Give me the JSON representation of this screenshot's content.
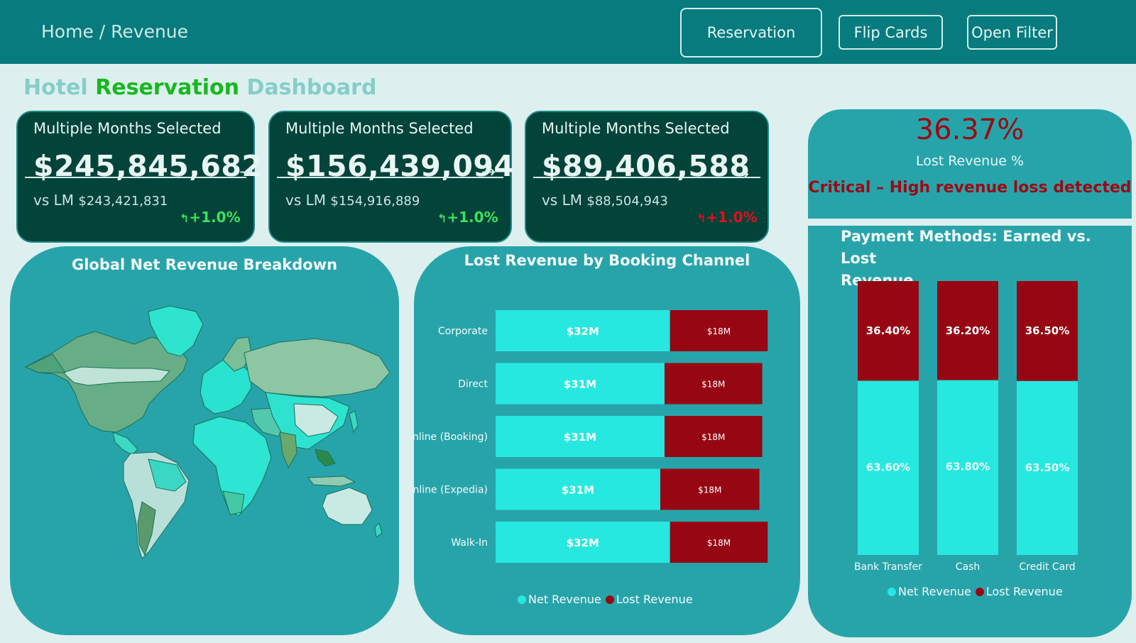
{
  "header": {
    "breadcrumb": "Home / Revenue",
    "buttons": {
      "reservation": "Reservation",
      "flip_cards": "Flip Cards",
      "open_filter": "Open Filter"
    }
  },
  "title": {
    "part1": "Hotel",
    "part2": "Reservation",
    "part3": "Dashboard",
    "colors": {
      "part1": "#86cdc9",
      "part2": "#17b81e",
      "part3": "#86cdc9"
    }
  },
  "kpis": [
    {
      "subtitle": "Multiple Months Selected",
      "value": "$245,845,682",
      "vs_label": "vs LM",
      "vs_value": "$243,421,831",
      "change": "+1.0%",
      "change_color": "#3be35a",
      "arrow_icon": "arrow-right"
    },
    {
      "subtitle": "Multiple Months Selected",
      "value": "$156,439,094",
      "vs_label": "vs LM",
      "vs_value": "$154,916,889",
      "change": "+1.0%",
      "change_color": "#3be35a",
      "arrow_icon": "arrow-right"
    },
    {
      "subtitle": "Multiple Months Selected",
      "value": "$89,406,588",
      "vs_label": "vs LM",
      "vs_value": "$88,504,943",
      "change": "+1.0%",
      "change_color": "#e0101e",
      "arrow_icon": "arrow-right"
    }
  ],
  "lost_revenue": {
    "percent": "36.37%",
    "label": "Lost Revenue %",
    "message": "Critical – High revenue loss detected"
  },
  "map_panel": {
    "title": "Global Net Revenue Breakdown"
  },
  "channel_panel": {
    "title": "Lost Revenue by Booking Channel"
  },
  "payment_panel": {
    "title_line1": "Payment Methods: Earned vs. Lost",
    "title_line2": "Revenue"
  },
  "colors": {
    "net": "#27e8e0",
    "lost": "#970713",
    "panel": "#27a4aa",
    "header": "#077b7e",
    "kpi": "#02433a"
  },
  "chart_data": [
    {
      "type": "bar",
      "orientation": "horizontal",
      "stacked": true,
      "categories": [
        "Corporate",
        "Direct",
        "Online (Booking)",
        "Online (Expedia)",
        "Walk-In"
      ],
      "series": [
        {
          "name": "Net Revenue",
          "values": [
            32,
            31,
            31,
            31,
            32
          ],
          "labels": [
            "$32M",
            "$31M",
            "$31M",
            "$31M",
            "$32M"
          ]
        },
        {
          "name": "Lost Revenue",
          "values": [
            18,
            18,
            18,
            18,
            18
          ],
          "labels": [
            "$18M",
            "$18M",
            "$18M",
            "$18M",
            "$18M"
          ]
        }
      ],
      "title": "Lost Revenue by Booking Channel",
      "legend": "bottom"
    },
    {
      "type": "bar",
      "stacked": true,
      "percent": true,
      "categories": [
        "Bank Transfer",
        "Cash",
        "Credit Card"
      ],
      "series": [
        {
          "name": "Net Revenue",
          "values": [
            63.6,
            63.8,
            63.5
          ],
          "labels": [
            "63.60%",
            "63.80%",
            "63.50%"
          ]
        },
        {
          "name": "Lost Revenue",
          "values": [
            36.4,
            36.2,
            36.5
          ],
          "labels": [
            "36.40%",
            "36.20%",
            "36.50%"
          ]
        }
      ],
      "title": "Payment Methods: Earned vs. Lost Revenue",
      "legend": "bottom"
    }
  ]
}
